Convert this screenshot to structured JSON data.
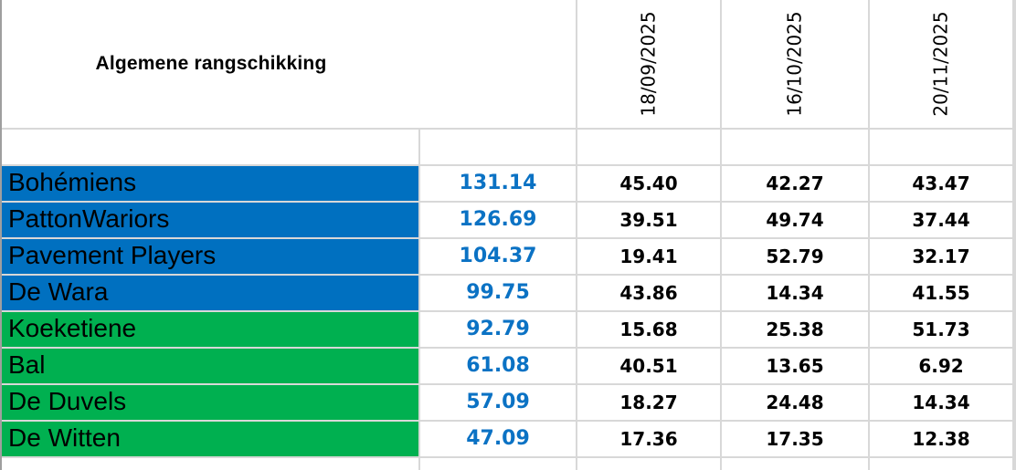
{
  "header": {
    "title": "Algemene rangschikking",
    "dates": [
      "18/09/2025",
      "16/10/2025",
      "20/11/2025"
    ]
  },
  "rows": [
    {
      "team": "Bohémiens",
      "group": "blue",
      "total": "131.14",
      "scores": [
        "45.40",
        "42.27",
        "43.47"
      ]
    },
    {
      "team": "PattonWariors",
      "group": "blue",
      "total": "126.69",
      "scores": [
        "39.51",
        "49.74",
        "37.44"
      ]
    },
    {
      "team": "Pavement Players",
      "group": "blue",
      "total": "104.37",
      "scores": [
        "19.41",
        "52.79",
        "32.17"
      ]
    },
    {
      "team": "De Wara",
      "group": "blue",
      "total": "99.75",
      "scores": [
        "43.86",
        "14.34",
        "41.55"
      ]
    },
    {
      "team": "Koeketiene",
      "group": "green",
      "total": "92.79",
      "scores": [
        "15.68",
        "25.38",
        "51.73"
      ]
    },
    {
      "team": "Bal",
      "group": "green",
      "total": "61.08",
      "scores": [
        "40.51",
        "13.65",
        "6.92"
      ]
    },
    {
      "team": "De Duvels",
      "group": "green",
      "total": "57.09",
      "scores": [
        "18.27",
        "24.48",
        "14.34"
      ]
    },
    {
      "team": "De Witten",
      "group": "green",
      "total": "47.09",
      "scores": [
        "17.36",
        "17.35",
        "12.38"
      ]
    }
  ],
  "colors": {
    "team_blue": "#0070C0",
    "team_green": "#00B050",
    "total_text_blue": "#0b72c4",
    "gridline": "#d8d8d8"
  }
}
